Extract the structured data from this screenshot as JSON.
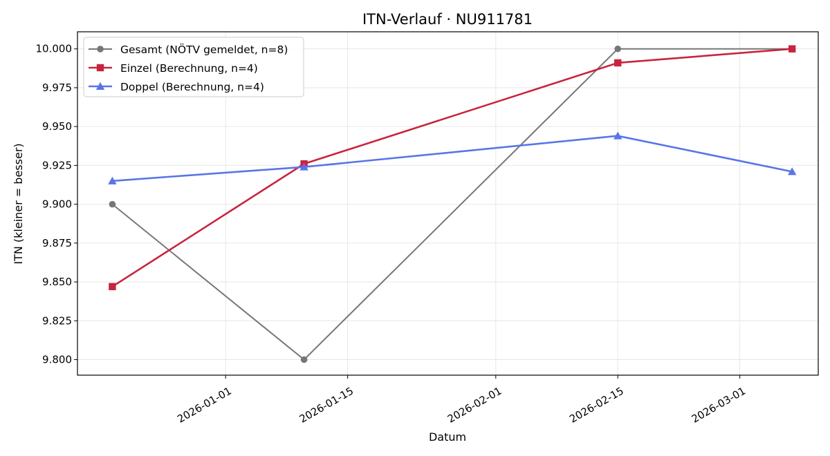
{
  "chart_data": {
    "type": "line",
    "title": "ITN-Verlauf · NU911781",
    "xlabel": "Datum",
    "ylabel": "ITN  (kleiner = besser)",
    "x_is_date": true,
    "xlim": [
      "2025-12-15",
      "2026-03-10"
    ],
    "ylim": [
      9.79,
      10.011
    ],
    "x_ticks": [
      "2026-01-01",
      "2026-01-15",
      "2026-02-01",
      "2026-02-15",
      "2026-03-01"
    ],
    "y_ticks": [
      9.8,
      9.825,
      9.85,
      9.875,
      9.9,
      9.925,
      9.95,
      9.975,
      10.0
    ],
    "y_tick_labels": [
      "9.800",
      "9.825",
      "9.850",
      "9.875",
      "9.900",
      "9.925",
      "9.950",
      "9.975",
      "10.000"
    ],
    "grid": true,
    "legend_position": "top-left",
    "series": [
      {
        "name": "Gesamt (NÖTV gemeldet, n=8)",
        "color": "#767676",
        "marker": "circle",
        "x": [
          "2025-12-19",
          "2026-01-10",
          "2026-02-15",
          "2026-03-07"
        ],
        "y": [
          9.9,
          9.8,
          10.0,
          10.0
        ]
      },
      {
        "name": "Einzel (Berechnung, n=4)",
        "color": "#c8243e",
        "marker": "square",
        "x": [
          "2025-12-19",
          "2026-01-10",
          "2026-02-15",
          "2026-03-07"
        ],
        "y": [
          9.847,
          9.926,
          9.991,
          10.0
        ]
      },
      {
        "name": "Doppel (Berechnung, n=4)",
        "color": "#5a74e8",
        "marker": "triangle",
        "x": [
          "2025-12-19",
          "2026-01-10",
          "2026-02-15",
          "2026-03-07"
        ],
        "y": [
          9.915,
          9.924,
          9.944,
          9.921
        ]
      }
    ]
  }
}
